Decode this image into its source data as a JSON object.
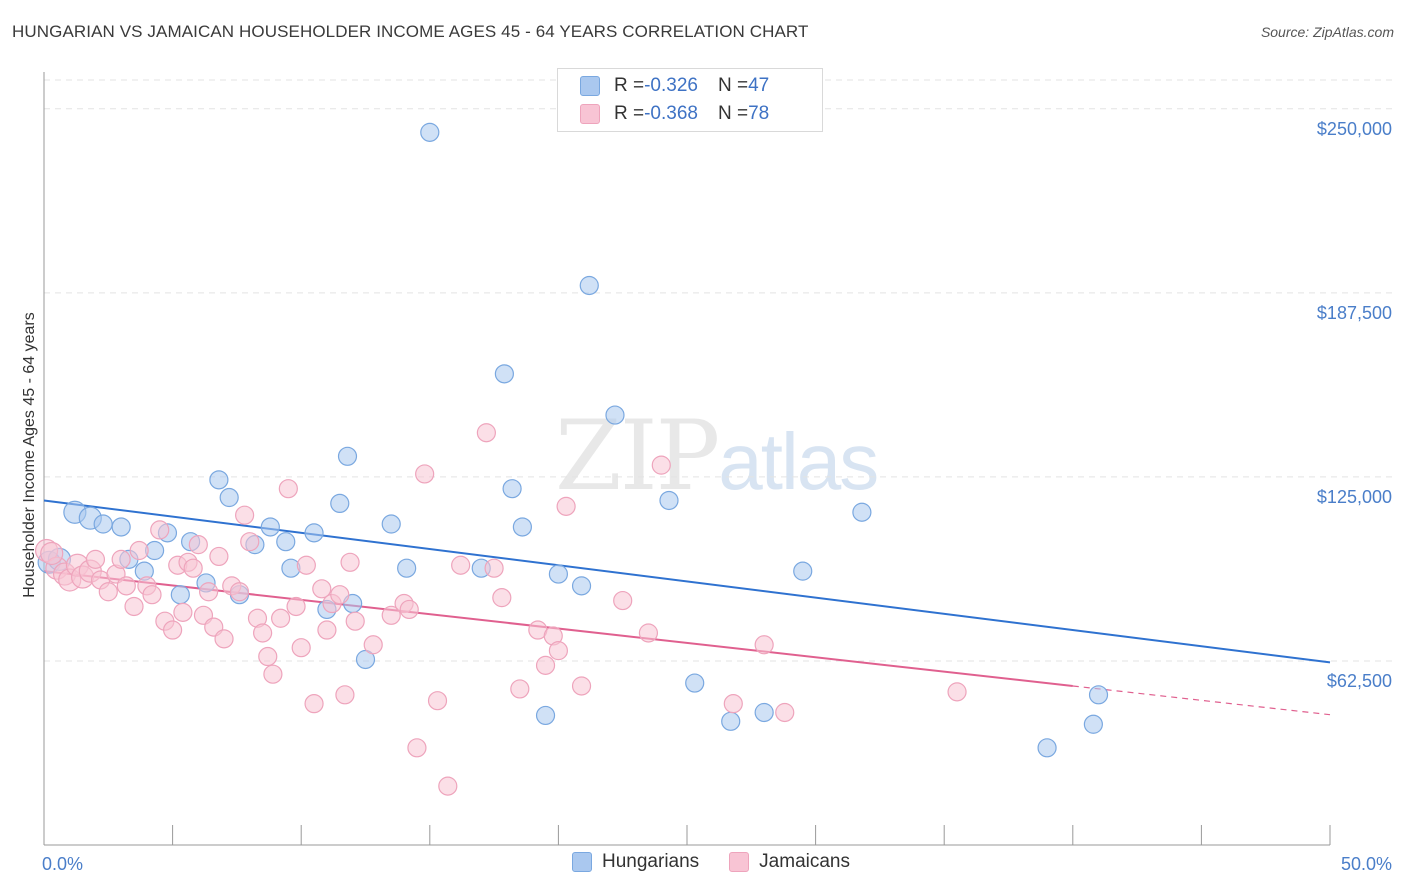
{
  "title": "HUNGARIAN VS JAMAICAN HOUSEHOLDER INCOME AGES 45 - 64 YEARS CORRELATION CHART",
  "source": "Source: ZipAtlas.com",
  "watermark": {
    "main": "ZIP",
    "sub": "atlas"
  },
  "legend": {
    "rows": [
      {
        "r_label": "R = ",
        "r_value": "-0.326",
        "n_label": "N = ",
        "n_value": "47",
        "color": "#aac8ef",
        "border": "#7aa8e0"
      },
      {
        "r_label": "R = ",
        "r_value": "-0.368",
        "n_label": "N = ",
        "n_value": "78",
        "color": "#f8c4d4",
        "border": "#eea4bc"
      }
    ]
  },
  "bottom_legend": [
    {
      "label": "Hungarians",
      "color": "#aac8ef",
      "border": "#7aa8e0"
    },
    {
      "label": "Jamaicans",
      "color": "#f8c4d4",
      "border": "#eea4bc"
    }
  ],
  "chart_data": {
    "type": "scatter",
    "ylabel": "Householder Income Ages 45 - 64 years",
    "xlim": [
      0,
      50
    ],
    "ylim": [
      0,
      262500
    ],
    "y_ticks": [
      {
        "value": 62500,
        "label": "$62,500"
      },
      {
        "value": 125000,
        "label": "$125,000"
      },
      {
        "value": 187500,
        "label": "$187,500"
      },
      {
        "value": 250000,
        "label": "$250,000"
      }
    ],
    "x_tick_labels": [
      {
        "value": 0,
        "label": "0.0%"
      },
      {
        "value": 50,
        "label": "50.0%"
      }
    ],
    "x_minor_ticks": [
      0,
      5,
      10,
      15,
      20,
      25,
      30,
      35,
      40,
      45,
      50
    ],
    "grid": true,
    "series": [
      {
        "name": "Hungarians",
        "color": "#7aa8e0",
        "fill": "#aac8ef",
        "trend": {
          "x0": 0,
          "y0": 117000,
          "x1": 50,
          "y1": 62000,
          "dashed_from": 50
        },
        "points": [
          [
            0.2,
            96000
          ],
          [
            0.6,
            97000
          ],
          [
            1.2,
            113000
          ],
          [
            1.8,
            111000
          ],
          [
            2.3,
            109000
          ],
          [
            3.0,
            108000
          ],
          [
            3.3,
            97000
          ],
          [
            3.9,
            93000
          ],
          [
            4.3,
            100000
          ],
          [
            4.8,
            106000
          ],
          [
            5.3,
            85000
          ],
          [
            5.7,
            103000
          ],
          [
            6.3,
            89000
          ],
          [
            6.8,
            124000
          ],
          [
            7.2,
            118000
          ],
          [
            7.6,
            85000
          ],
          [
            8.2,
            102000
          ],
          [
            8.8,
            108000
          ],
          [
            9.4,
            103000
          ],
          [
            9.6,
            94000
          ],
          [
            10.5,
            106000
          ],
          [
            11.0,
            80000
          ],
          [
            11.5,
            116000
          ],
          [
            11.8,
            132000
          ],
          [
            12.0,
            82000
          ],
          [
            12.5,
            63000
          ],
          [
            13.5,
            109000
          ],
          [
            14.1,
            94000
          ],
          [
            15.0,
            242000
          ],
          [
            17.0,
            94000
          ],
          [
            17.9,
            160000
          ],
          [
            18.2,
            121000
          ],
          [
            18.6,
            108000
          ],
          [
            19.5,
            44000
          ],
          [
            20.0,
            92000
          ],
          [
            20.9,
            88000
          ],
          [
            21.2,
            190000
          ],
          [
            22.2,
            146000
          ],
          [
            24.3,
            117000
          ],
          [
            25.3,
            55000
          ],
          [
            26.7,
            42000
          ],
          [
            28.0,
            45000
          ],
          [
            29.5,
            93000
          ],
          [
            31.8,
            113000
          ],
          [
            39.0,
            33000
          ],
          [
            40.8,
            41000
          ],
          [
            41.0,
            51000
          ]
        ]
      },
      {
        "name": "Jamaicans",
        "color": "#eea4bc",
        "fill": "#f8c4d4",
        "trend": {
          "x0": 0,
          "y0": 93000,
          "x1": 40,
          "y1": 54000,
          "dashed_to": 50
        },
        "points": [
          [
            0.1,
            100000
          ],
          [
            0.5,
            94000
          ],
          [
            0.8,
            92000
          ],
          [
            1.0,
            90000
          ],
          [
            1.3,
            95000
          ],
          [
            1.5,
            91000
          ],
          [
            1.8,
            93000
          ],
          [
            2.0,
            97000
          ],
          [
            2.2,
            90000
          ],
          [
            2.5,
            86000
          ],
          [
            2.8,
            92000
          ],
          [
            3.0,
            97000
          ],
          [
            3.2,
            88000
          ],
          [
            3.5,
            81000
          ],
          [
            3.7,
            100000
          ],
          [
            4.0,
            88000
          ],
          [
            4.2,
            85000
          ],
          [
            4.5,
            107000
          ],
          [
            4.7,
            76000
          ],
          [
            5.0,
            73000
          ],
          [
            5.2,
            95000
          ],
          [
            5.4,
            79000
          ],
          [
            5.6,
            96000
          ],
          [
            5.8,
            94000
          ],
          [
            6.0,
            102000
          ],
          [
            6.2,
            78000
          ],
          [
            6.4,
            86000
          ],
          [
            6.6,
            74000
          ],
          [
            6.8,
            98000
          ],
          [
            7.0,
            70000
          ],
          [
            7.3,
            88000
          ],
          [
            7.6,
            86000
          ],
          [
            7.8,
            112000
          ],
          [
            8.0,
            103000
          ],
          [
            8.3,
            77000
          ],
          [
            8.5,
            72000
          ],
          [
            8.7,
            64000
          ],
          [
            8.9,
            58000
          ],
          [
            9.2,
            77000
          ],
          [
            9.5,
            121000
          ],
          [
            9.8,
            81000
          ],
          [
            10.0,
            67000
          ],
          [
            10.2,
            95000
          ],
          [
            10.5,
            48000
          ],
          [
            10.8,
            87000
          ],
          [
            11.0,
            73000
          ],
          [
            11.2,
            82000
          ],
          [
            11.5,
            85000
          ],
          [
            11.7,
            51000
          ],
          [
            11.9,
            96000
          ],
          [
            12.1,
            76000
          ],
          [
            12.8,
            68000
          ],
          [
            13.5,
            78000
          ],
          [
            14.0,
            82000
          ],
          [
            14.2,
            80000
          ],
          [
            14.5,
            33000
          ],
          [
            14.8,
            126000
          ],
          [
            15.3,
            49000
          ],
          [
            15.7,
            20000
          ],
          [
            16.2,
            95000
          ],
          [
            17.2,
            140000
          ],
          [
            17.5,
            94000
          ],
          [
            17.8,
            84000
          ],
          [
            18.5,
            53000
          ],
          [
            19.2,
            73000
          ],
          [
            19.5,
            61000
          ],
          [
            19.8,
            71000
          ],
          [
            20.0,
            66000
          ],
          [
            20.3,
            115000
          ],
          [
            20.9,
            54000
          ],
          [
            22.5,
            83000
          ],
          [
            23.5,
            72000
          ],
          [
            24.0,
            129000
          ],
          [
            26.8,
            48000
          ],
          [
            28.0,
            68000
          ],
          [
            28.8,
            45000
          ],
          [
            35.5,
            52000
          ],
          [
            0.3,
            99000
          ]
        ]
      }
    ]
  }
}
